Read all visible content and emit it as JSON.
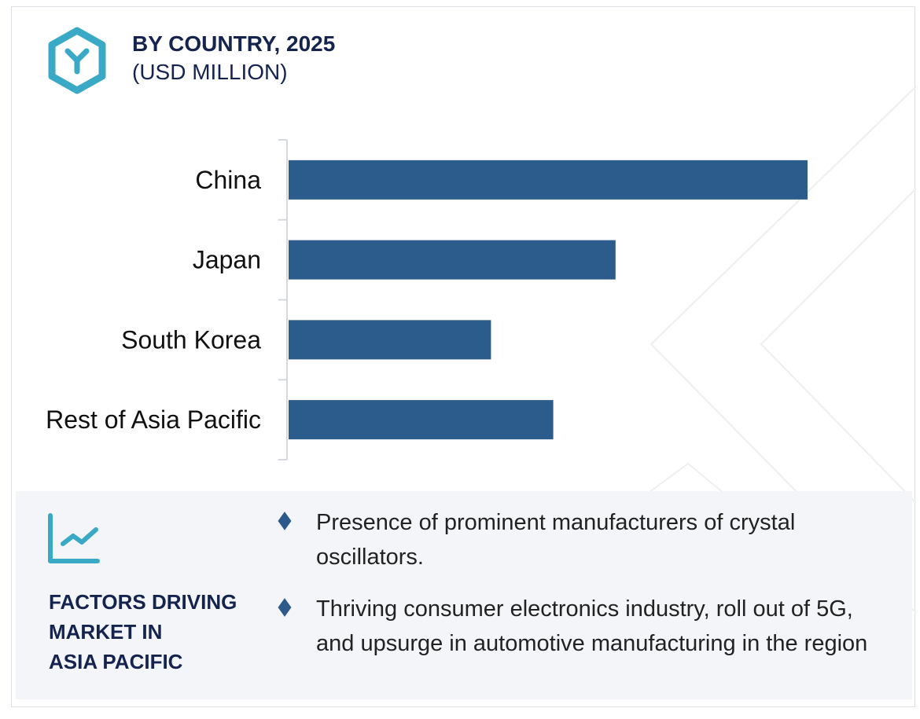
{
  "header": {
    "title": "BY COUNTRY, 2025",
    "subtitle": "(USD MILLION)",
    "icon": "hexagon-y-logo-icon"
  },
  "colors": {
    "bar": "#2c5c8b",
    "title": "#14244f",
    "accent": "#3aa9c6",
    "panel": "#f3f5f9"
  },
  "chart_data": {
    "type": "bar",
    "orientation": "horizontal",
    "title": "BY COUNTRY, 2025",
    "subtitle": "(USD MILLION)",
    "categories": [
      "China",
      "Japan",
      "South Korea",
      "Rest of Asia Pacific"
    ],
    "values": [
      100,
      63,
      39,
      51
    ],
    "value_note_relative": true,
    "xlim": [
      0,
      100
    ],
    "grid": false
  },
  "factors": {
    "icon": "line-chart-icon",
    "title_lines": [
      "FACTORS DRIVING",
      "MARKET IN",
      "ASIA PACIFIC"
    ],
    "bullets": [
      "Presence of prominent manufacturers of crystal oscillators.",
      "Thriving consumer electronics industry, roll out of 5G, and upsurge in automotive manufacturing in the region"
    ]
  }
}
